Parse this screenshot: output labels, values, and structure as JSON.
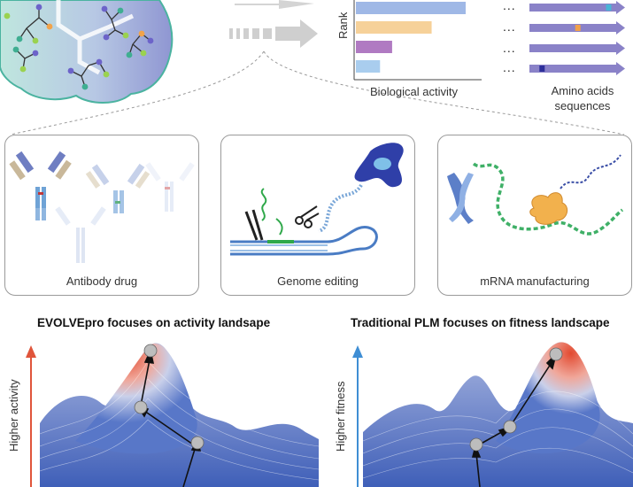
{
  "rank_chart": {
    "ylabel": "Rank",
    "xlabel": "Biological activity",
    "bars": [
      {
        "value": 1.0,
        "color": "#9fb8e6"
      },
      {
        "value": 0.69,
        "color": "#f6d199"
      },
      {
        "value": 0.33,
        "color": "#b07ac2"
      },
      {
        "value": 0.22,
        "color": "#a9cdee"
      }
    ]
  },
  "sequences": {
    "label_line1": "Amino acids",
    "label_line2": "sequences",
    "ellipsis": "...",
    "markers": [
      {
        "pos": 0.92,
        "color": "#49b4d6"
      },
      {
        "pos": 0.55,
        "color": "#f0a04a"
      },
      {
        "pos": null,
        "color": ""
      },
      {
        "pos": 0.12,
        "color": "#2d2f9a"
      }
    ]
  },
  "panels": {
    "antibody": "Antibody drug",
    "genome": "Genome editing",
    "mrna": "mRNA manufacturing"
  },
  "landscapes": {
    "left_title": "EVOLVEpro focuses on activity landsape",
    "left_axis": "Higher activity",
    "right_title": "Traditional PLM focuses on fitness landscape",
    "right_axis": "Higher fitness"
  },
  "colors": {
    "activity_arrow": "#e0553b",
    "fitness_arrow": "#3f8ed4",
    "gray_arrow": "#c9c9c9",
    "surface_low": "#5877c8",
    "surface_high": "#e0553b"
  }
}
